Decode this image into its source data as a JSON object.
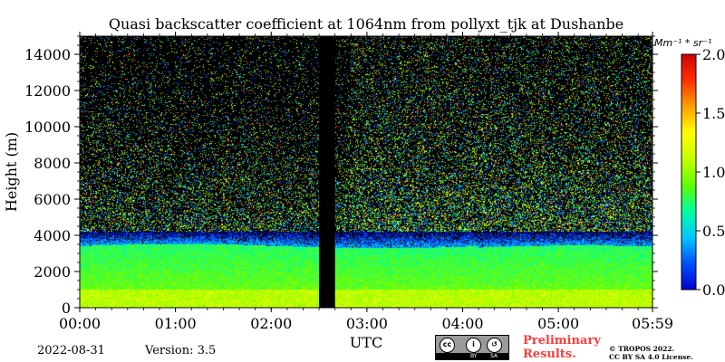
{
  "chart_data": {
    "type": "heatmap",
    "title": "Quasi backscatter coefficient at 1064nm from pollyxt_tjk at Dushanbe",
    "xlabel": "UTC",
    "ylabel": "Height (m)",
    "x_ticks": [
      "00:00",
      "01:00",
      "02:00",
      "03:00",
      "04:00",
      "05:00",
      "05:59"
    ],
    "x_tick_minutes": [
      0,
      60,
      120,
      180,
      240,
      300,
      359
    ],
    "xlim_minutes": [
      0,
      359
    ],
    "y_ticks": [
      "0",
      "2000",
      "4000",
      "6000",
      "8000",
      "10000",
      "12000",
      "14000"
    ],
    "y_tick_values": [
      0,
      2000,
      4000,
      6000,
      8000,
      10000,
      12000,
      14000
    ],
    "ylim": [
      0,
      15000
    ],
    "colorbar": {
      "label": "Mm⁻¹ * sr⁻¹",
      "ticks": [
        "0.0",
        "0.5",
        "1.0",
        "1.5",
        "2.0"
      ],
      "tick_values": [
        0,
        0.5,
        1.0,
        1.5,
        2.0
      ],
      "range": [
        0,
        2.0
      ],
      "colormap": "jet",
      "colors": [
        "#0000cc",
        "#0050ff",
        "#00c8ff",
        "#00ffa0",
        "#60ff00",
        "#c8ff00",
        "#ffff00",
        "#ffa000",
        "#ff3000",
        "#cc0000"
      ]
    },
    "gap_minutes": [
      150,
      160
    ],
    "layers": [
      {
        "name": "aerosol_layer_low",
        "height_range_m": [
          0,
          1000
        ],
        "typical_value": 1.1
      },
      {
        "name": "aerosol_layer_upper",
        "height_range_m": [
          1000,
          3400
        ],
        "typical_value": 0.9
      },
      {
        "name": "layer_top_transition",
        "height_range_m": [
          3400,
          4000
        ],
        "typical_value": 0.35
      },
      {
        "name": "noisy_free_troposphere",
        "height_range_m": [
          4000,
          15000
        ],
        "typical_value": 0.05
      }
    ]
  },
  "footer": {
    "date": "2022-08-31",
    "version": "Version: 3.5",
    "cc_strip_by": "BY",
    "cc_strip_sa": "SA",
    "preliminary_line1": "Preliminary",
    "preliminary_line2": "Results.",
    "copyright_line1": "© TROPOS 2022.",
    "copyright_line2": "CC BY SA 4.0 License."
  }
}
